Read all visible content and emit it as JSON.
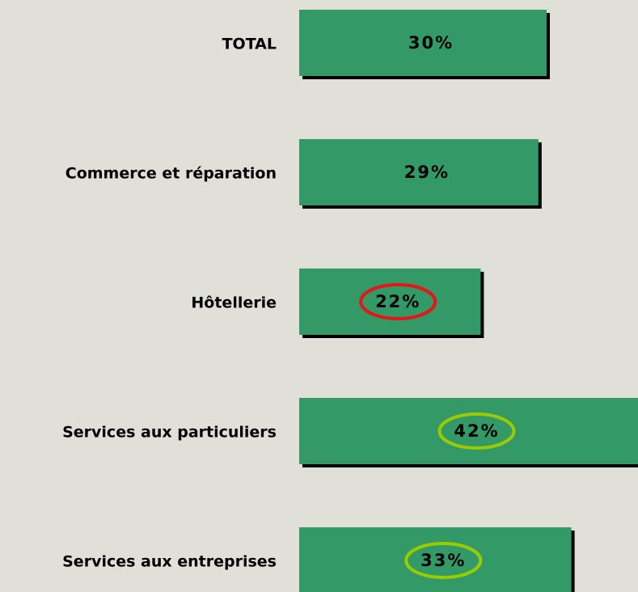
{
  "chart_data": {
    "type": "hbar",
    "categories": [
      "TOTAL",
      "Commerce et réparation",
      "Hôtellerie",
      "Services aux particuliers",
      "Services aux entreprises"
    ],
    "values": [
      30,
      29,
      22,
      42,
      33
    ],
    "value_labels": [
      "30%",
      "29%",
      "22%",
      "42%",
      "33%"
    ],
    "color": "#339966",
    "highlight_colors": [
      null,
      null,
      "#e8141a",
      "#99cc00",
      "#99cc00"
    ]
  }
}
